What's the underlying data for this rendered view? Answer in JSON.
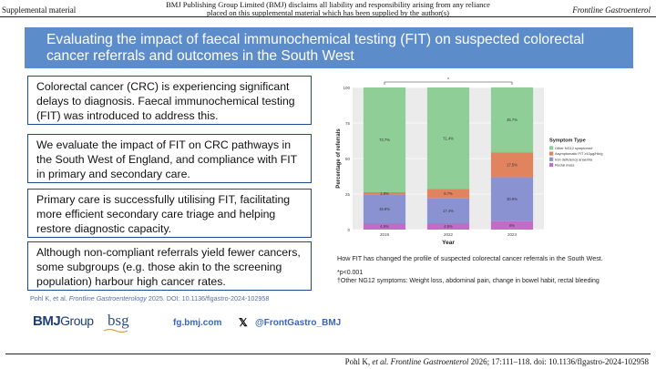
{
  "header": {
    "left": "Supplemental material",
    "center_line1": "BMJ Publishing Group Limited (BMJ) disclaims all liability and responsibility arising from any reliance",
    "center_line2": "placed on this supplemental material which has been supplied by the author(s)",
    "right": "Frontline Gastroenterol"
  },
  "title": "Evaluating the impact of faecal immunochemical testing (FIT) on suspected colorectal cancer referrals and outcomes in the South West",
  "boxes": [
    "Colorectal cancer (CRC) is experiencing significant delays to diagnosis. Faecal immunochemical testing (FIT) was introduced to address this.",
    "We evaluate the impact of FIT on CRC pathways in the South West of England, and compliance with FIT in primary and secondary care.",
    "Primary care is successfully utilising FIT, facilitating more efficient secondary care triage and helping restore diagnostic capacity.",
    "Although non-compliant referrals yield fewer cancers, some subgroups (e.g. those akin to the screening population) harbour high cancer rates."
  ],
  "citation": {
    "prefix": "Pohl K, et al. ",
    "journal": "Frontline Gastroenterology",
    "suffix": " 2025. DOI: 10.1136/flgastro-2024-102958"
  },
  "logos": {
    "bmj": "BMJ",
    "group": "Group",
    "bsg": "bsg"
  },
  "links": {
    "site": "fg.bmj.com",
    "x_icon": "x-logo-icon",
    "handle": "@FrontGastro_BMJ"
  },
  "chart_caption": "How FIT has changed the profile of suspected colorectal cancer referrals in the South West.",
  "notes": {
    "sig": "*p<0.001",
    "other": "†Other NG12 symptoms: Weight loss, abdominal pain, change in bowel habit, rectal bleeding"
  },
  "footer": {
    "prefix": "Pohl K, ",
    "etal": "et al. Frontline Gastroenterol",
    "suffix": " 2026; 17:111–118. doi: 10.1136/flgastro-2024-102958"
  },
  "colors": {
    "title_bar": "#5d8ccb",
    "box_border": "#1e4b8f",
    "link": "#3a66b8"
  },
  "chart_data": {
    "type": "bar",
    "stacked": true,
    "categories": [
      "2019",
      "2022",
      "2023"
    ],
    "xlabel": "Year",
    "ylabel": "Percentage of referrals",
    "ylim": [
      0,
      100
    ],
    "yticks": [
      0,
      25,
      50,
      75,
      100
    ],
    "legend_title": "Symptom Type",
    "legend_position": "right",
    "significance_marker": "*",
    "series": [
      {
        "name": "Rectal mass",
        "color": "#c36cc7",
        "values": [
          4.5,
          4.5,
          6
        ],
        "labels": [
          "4.5%",
          "4.5%",
          "6%"
        ]
      },
      {
        "name": "Iron deficiency anaemia",
        "color": "#8b92d1",
        "values": [
          19.9,
          17.4,
          30.9
        ],
        "labels": [
          "19.9%",
          "17.4%",
          "30.9%"
        ]
      },
      {
        "name": "Asymptomatic FIT ≥10μg/Hb/g",
        "color": "#e2835f",
        "values": [
          1.9,
          6.7,
          17.5
        ],
        "labels": [
          "1.9%",
          "6.7%",
          "17.5%"
        ]
      },
      {
        "name": "Other NG12 symptoms†",
        "color": "#8fcf97",
        "values": [
          73.7,
          71.4,
          45.7
        ],
        "labels": [
          "73.7%",
          "71.4%",
          "45.7%"
        ]
      }
    ]
  }
}
